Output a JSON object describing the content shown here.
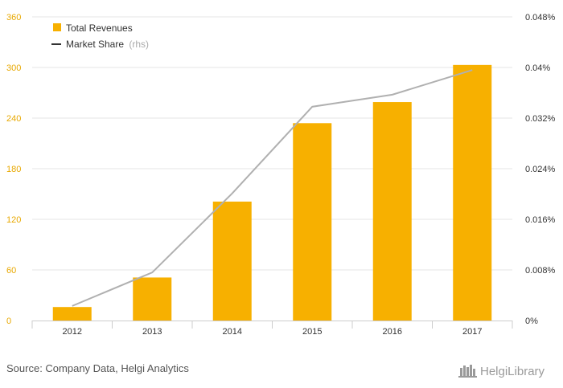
{
  "chart_data": {
    "type": "bar",
    "categories": [
      "2012",
      "2013",
      "2014",
      "2015",
      "2016",
      "2017"
    ],
    "series": [
      {
        "name": "Total Revenues",
        "type": "bar",
        "axis": "left",
        "values": [
          16,
          51,
          141,
          234,
          259,
          303
        ]
      },
      {
        "name": "Market Share",
        "legend_suffix": "(rhs)",
        "type": "line",
        "axis": "right",
        "values": [
          0.0023,
          0.0076,
          0.0201,
          0.0338,
          0.0357,
          0.0396
        ]
      }
    ],
    "y_left": {
      "lim": [
        0,
        360
      ],
      "ticks": [
        "0",
        "60",
        "120",
        "180",
        "240",
        "300",
        "360"
      ]
    },
    "y_right": {
      "lim": [
        0,
        0.048
      ],
      "ticks": [
        "0%",
        "0.008%",
        "0.016%",
        "0.024%",
        "0.032%",
        "0.04%",
        "0.048%"
      ]
    },
    "grid": true,
    "legend_position": "top-left"
  },
  "colors": {
    "bar": "#f7b000",
    "line": "#b0b0b0",
    "grid": "#e6e6e6",
    "left_tick": "#e8a800"
  },
  "footer": {
    "source": "Source: Company Data, Helgi Analytics",
    "logo_text": "HelgiLibrary"
  }
}
